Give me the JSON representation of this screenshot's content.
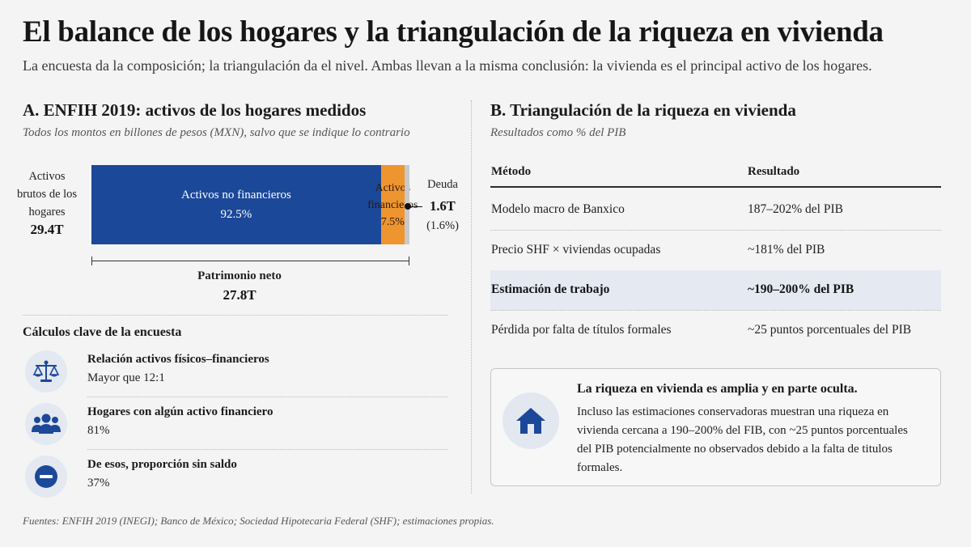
{
  "header": {
    "title": "El balance de los hogares y la triangulación de la riqueza en vivienda",
    "subtitle": "La encuesta da la composición; la triangulación da el nivel. Ambas llevan a la misma conclusión: la vivienda es el principal activo de los hogares."
  },
  "panel_a": {
    "title": "A. ENFIH 2019: activos de los hogares medidos",
    "subtitle": "Todos los montos en billones de pesos (MXN), salvo que se indique lo contrario",
    "gross_assets": {
      "label": "Activos brutos de los hogares",
      "value": "29.4T"
    },
    "bar": {
      "segments": [
        {
          "label": "Activos no financieros",
          "value_text": "92.5%",
          "share": 92.5,
          "color": "#1c4899"
        },
        {
          "label": "Activos financieros",
          "value_text": "7.5%",
          "share": 7.5,
          "color": "#ef9530"
        },
        {
          "label": "",
          "value_text": "",
          "share": 1.6,
          "color": "#c9c9c9"
        }
      ]
    },
    "debt": {
      "label": "Deuda",
      "value": "1.6T",
      "pct": "(1.6%)"
    },
    "net_worth": {
      "label": "Patrimonio neto",
      "value": "27.8T"
    },
    "calc_title": "Cálculos clave de la encuesta",
    "calcs": [
      {
        "icon": "scale-icon",
        "label": "Relación activos físicos–financieros",
        "value": "Mayor que 12:1"
      },
      {
        "icon": "people-icon",
        "label": "Hogares con algún activo financiero",
        "value": "81%"
      },
      {
        "icon": "minus-circle-icon",
        "label": "De esos, proporción sin saldo",
        "value": "37%"
      }
    ]
  },
  "panel_b": {
    "title": "B. Triangulación de la riqueza en vivienda",
    "subtitle": "Resultados como % del PIB",
    "table": {
      "headers": [
        "Método",
        "Resultado"
      ],
      "rows": [
        {
          "method": "Modelo macro de Banxico",
          "result": "187–202% del PIB",
          "highlight": false
        },
        {
          "method": "Precio SHF × viviendas ocupadas",
          "result": "~181% del PIB",
          "highlight": false
        },
        {
          "method": "Estimación de trabajo",
          "result": "~190–200% del PIB",
          "highlight": true
        },
        {
          "method": "Pérdida por falta de títulos formales",
          "result": "~25 puntos porcentuales del PIB",
          "highlight": false
        }
      ]
    },
    "callout": {
      "icon": "house-icon",
      "title": "La riqueza en vivienda es amplia y en parte oculta.",
      "body": "Incluso las estimaciones conservadoras muestran una riqueza en vivienda cercana a 190–200% del FIB, con ~25 puntos porcentuales del PIB potencialmente no observados debido a la falta de titulos formales."
    }
  },
  "footer": {
    "sources": "Fuentes: ENFIH 2019 (INEGI); Banco de México; Sociedad Hipotecaria Federal (SHF); estimaciones propias."
  },
  "colors": {
    "accent_blue": "#1c4899",
    "accent_orange": "#ef9530",
    "debt_gray": "#c9c9c9",
    "highlight_row": "#e5e9f1"
  }
}
